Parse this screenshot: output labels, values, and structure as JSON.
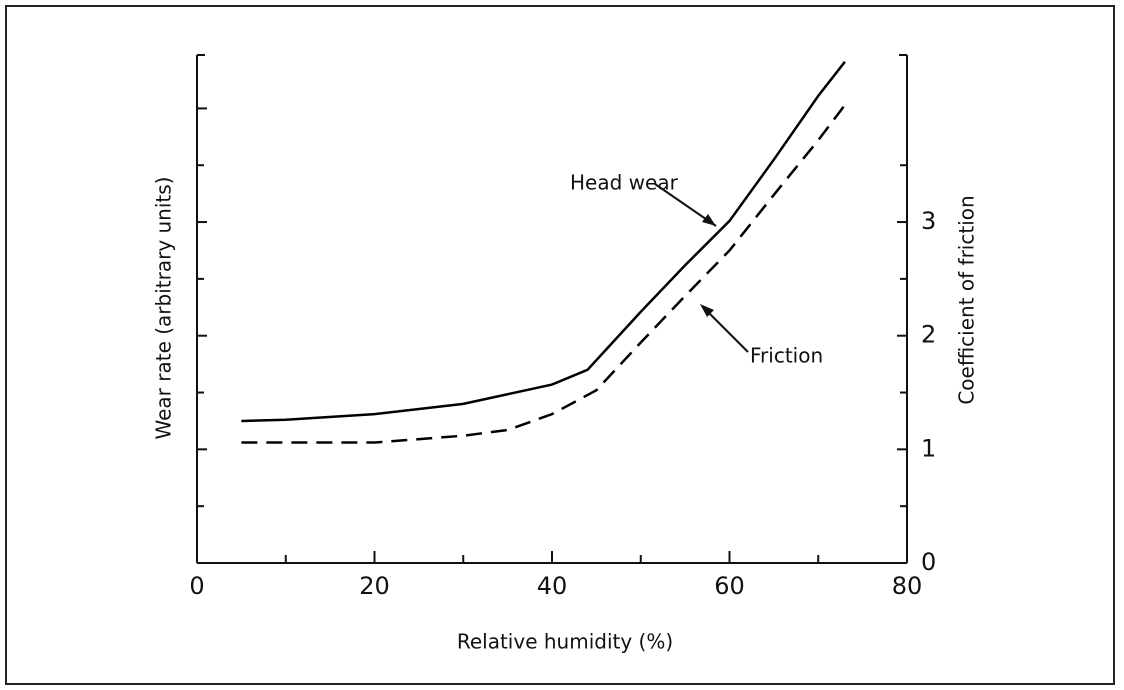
{
  "chart_data": {
    "type": "line",
    "xlabel": "Relative humidity (%)",
    "ylabel": "Wear rate (arbitrary units)",
    "y2label": "Coefficient of friction",
    "xlim": [
      0,
      80
    ],
    "xticks": [
      0,
      20,
      40,
      60,
      80
    ],
    "x_minor_ticks": [
      10,
      30,
      50,
      70
    ],
    "ylim": [
      0,
      4.47
    ],
    "y_tick_marks": [
      0.5,
      1,
      1.5,
      2,
      2.5,
      3,
      3.5,
      4
    ],
    "y2lim": [
      0,
      4.47
    ],
    "y2ticks": [
      0,
      1,
      2,
      3
    ],
    "y2_minor_ticks": [
      0.5,
      1.5,
      2.5,
      3.5
    ],
    "series": [
      {
        "name": "Head wear",
        "color": "#000000",
        "dash": false,
        "x": [
          5,
          10,
          20,
          30,
          40,
          44,
          50,
          55,
          60,
          65,
          70,
          73
        ],
        "values": [
          1.25,
          1.26,
          1.31,
          1.4,
          1.57,
          1.7,
          2.21,
          2.62,
          3.01,
          3.55,
          4.11,
          4.41
        ]
      },
      {
        "name": "Friction",
        "color": "#000000",
        "dash": true,
        "axis": "y2",
        "x": [
          5,
          10,
          20,
          30,
          35,
          40,
          45,
          50,
          55,
          60,
          65,
          70,
          73
        ],
        "values": [
          1.06,
          1.06,
          1.06,
          1.12,
          1.17,
          1.31,
          1.52,
          1.94,
          2.35,
          2.75,
          3.24,
          3.72,
          4.03
        ]
      }
    ]
  }
}
